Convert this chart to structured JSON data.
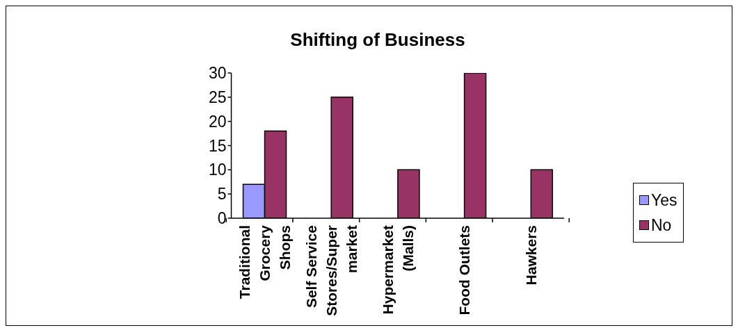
{
  "chart_data": {
    "type": "bar",
    "title": "Shifting of Business",
    "categories": [
      "Traditional Grocery Shops",
      "Self Service Stores/Super market",
      "Hypermarket (Malls)",
      "Food Outlets",
      "Hawkers"
    ],
    "series": [
      {
        "name": "Yes",
        "color": "#9999ff",
        "values": [
          7,
          0,
          0,
          0,
          0
        ]
      },
      {
        "name": "No",
        "color": "#993366",
        "values": [
          18,
          25,
          10,
          30,
          10
        ]
      }
    ],
    "ylim": [
      0,
      30
    ],
    "yticks": [
      0,
      5,
      10,
      15,
      20,
      25,
      30
    ],
    "legend": "right"
  }
}
